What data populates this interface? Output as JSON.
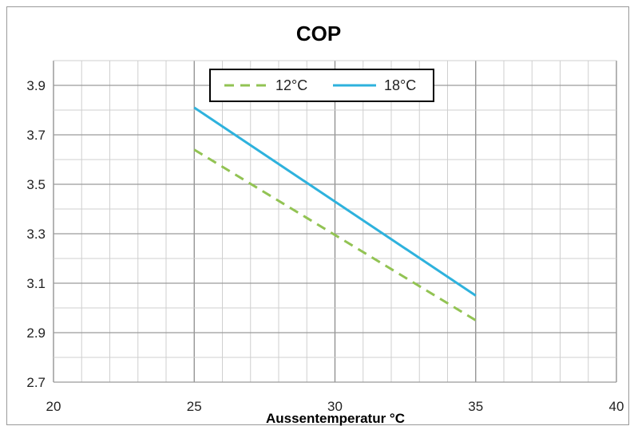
{
  "chart_data": {
    "type": "line",
    "title": "COP",
    "xlabel": "Aussentemperatur °C",
    "ylabel": "",
    "xlim": [
      20,
      40
    ],
    "ylim": [
      2.7,
      4.0
    ],
    "x_ticks": [
      20,
      25,
      30,
      35,
      40
    ],
    "x_tick_labels": [
      "20",
      "25",
      "30",
      "35",
      "40"
    ],
    "y_ticks": [
      2.7,
      2.9,
      3.1,
      3.3,
      3.5,
      3.7,
      3.9
    ],
    "y_tick_labels": [
      "2.7",
      "2.9",
      "3.1",
      "3.3",
      "3.5",
      "3.7",
      "3.9"
    ],
    "x_minor_step": 1,
    "y_minor_step": 0.1,
    "grid": true,
    "legend_position": "top-center",
    "series": [
      {
        "name": "12°C",
        "color": "#92C353",
        "dash": "dashed",
        "x": [
          25,
          35
        ],
        "y": [
          3.64,
          2.95
        ]
      },
      {
        "name": "18°C",
        "color": "#2EB2DD",
        "dash": "solid",
        "x": [
          25,
          35
        ],
        "y": [
          3.81,
          3.05
        ]
      }
    ]
  }
}
